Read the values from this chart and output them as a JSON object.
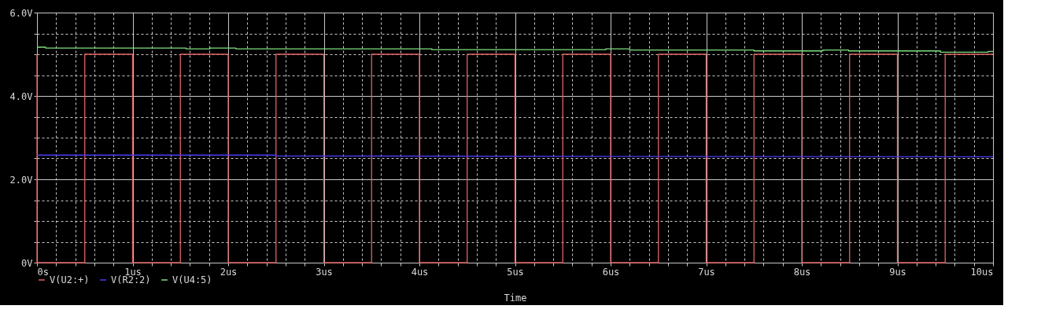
{
  "chart_data": {
    "type": "line",
    "xlabel": "Time",
    "legend": "bottom left",
    "grid": true,
    "line_style": "solid",
    "xlim": [
      0,
      10
    ],
    "ylim": [
      0,
      6
    ],
    "xticks": [
      {
        "value": 0,
        "label": "0s"
      },
      {
        "value": 0.2,
        "label": null
      },
      {
        "value": 0.4,
        "label": null
      },
      {
        "value": 0.6,
        "label": null
      },
      {
        "value": 0.8,
        "label": null
      },
      {
        "value": 1,
        "label": "1us"
      },
      {
        "value": 1.2,
        "label": null
      },
      {
        "value": 1.4,
        "label": null
      },
      {
        "value": 1.6,
        "label": null
      },
      {
        "value": 1.8,
        "label": null
      },
      {
        "value": 2,
        "label": "2us"
      },
      {
        "value": 2.2,
        "label": null
      },
      {
        "value": 2.4,
        "label": null
      },
      {
        "value": 2.6,
        "label": null
      },
      {
        "value": 2.8,
        "label": null
      },
      {
        "value": 3,
        "label": "3us"
      },
      {
        "value": 3.2,
        "label": null
      },
      {
        "value": 3.4,
        "label": null
      },
      {
        "value": 3.6,
        "label": null
      },
      {
        "value": 3.8,
        "label": null
      },
      {
        "value": 4,
        "label": "4us"
      },
      {
        "value": 4.2,
        "label": null
      },
      {
        "value": 4.4,
        "label": null
      },
      {
        "value": 4.6,
        "label": null
      },
      {
        "value": 4.8,
        "label": null
      },
      {
        "value": 5,
        "label": "5us"
      },
      {
        "value": 5.2,
        "label": null
      },
      {
        "value": 5.4,
        "label": null
      },
      {
        "value": 5.6,
        "label": null
      },
      {
        "value": 5.8,
        "label": null
      },
      {
        "value": 6,
        "label": "6us"
      },
      {
        "value": 6.2,
        "label": null
      },
      {
        "value": 6.4,
        "label": null
      },
      {
        "value": 6.6,
        "label": null
      },
      {
        "value": 6.8,
        "label": null
      },
      {
        "value": 7,
        "label": "7us"
      },
      {
        "value": 7.2,
        "label": null
      },
      {
        "value": 7.4,
        "label": null
      },
      {
        "value": 7.6,
        "label": null
      },
      {
        "value": 7.8,
        "label": null
      },
      {
        "value": 8,
        "label": "8us"
      },
      {
        "value": 8.2,
        "label": null
      },
      {
        "value": 8.4,
        "label": null
      },
      {
        "value": 8.6,
        "label": null
      },
      {
        "value": 8.8,
        "label": null
      },
      {
        "value": 9,
        "label": "9us"
      },
      {
        "value": 9.2,
        "label": null
      },
      {
        "value": 9.4,
        "label": null
      },
      {
        "value": 9.6,
        "label": null
      },
      {
        "value": 9.8,
        "label": null
      },
      {
        "value": 10,
        "label": "10us"
      }
    ],
    "yticks": [
      {
        "value": 0,
        "label": "0V"
      },
      {
        "value": 0.5,
        "label": null
      },
      {
        "value": 1,
        "label": null
      },
      {
        "value": 1.5,
        "label": null
      },
      {
        "value": 2,
        "label": "2.0V"
      },
      {
        "value": 2.5,
        "label": null
      },
      {
        "value": 3,
        "label": null
      },
      {
        "value": 3.5,
        "label": null
      },
      {
        "value": 4,
        "label": "4.0V"
      },
      {
        "value": 4.5,
        "label": null
      },
      {
        "value": 5,
        "label": null
      },
      {
        "value": 5.5,
        "label": null
      },
      {
        "value": 6,
        "label": "6.0V"
      }
    ],
    "series": [
      {
        "name": "V(U2:+)",
        "color": "#e06262",
        "x": [
          0,
          0,
          0.5,
          0.5,
          1,
          1,
          1.5,
          1.5,
          2,
          2,
          2.5,
          2.5,
          3,
          3,
          3.5,
          3.5,
          4,
          4,
          4.5,
          4.5,
          5,
          5,
          5.5,
          5.5,
          6,
          6,
          6.5,
          6.5,
          7,
          7,
          7.5,
          7.5,
          8,
          8,
          8.5,
          8.5,
          9,
          9,
          9.5,
          9.5,
          10
        ],
        "values": [
          5,
          0,
          0,
          5,
          5,
          0,
          0,
          5,
          5,
          0,
          0,
          5,
          5,
          0,
          0,
          5,
          5,
          0,
          0,
          5,
          5,
          0,
          0,
          5,
          5,
          0,
          0,
          5,
          5,
          0,
          0,
          5,
          5,
          0,
          0,
          5,
          5,
          0,
          0,
          5,
          5
        ]
      },
      {
        "name": "V(R2:2)",
        "color": "#4a3cf0",
        "x": [
          0,
          2.5,
          2.5,
          10
        ],
        "values": [
          2.58,
          2.58,
          2.56,
          2.54
        ]
      },
      {
        "name": "V(U4:5)",
        "color": "#7fe07f",
        "x": [
          0,
          0.09,
          0.09,
          1.56,
          1.56,
          1.81,
          1.81,
          2.08,
          2.08,
          4.13,
          4.13,
          5.95,
          5.95,
          6.2,
          6.2,
          7.5,
          7.5,
          8.22,
          8.22,
          8.49,
          8.49,
          9.45,
          9.45,
          9.95,
          9.95,
          10
        ],
        "values": [
          5.17,
          5.17,
          5.15,
          5.15,
          5.13,
          5.13,
          5.15,
          5.15,
          5.13,
          5.13,
          5.11,
          5.11,
          5.13,
          5.13,
          5.1,
          5.1,
          5.08,
          5.08,
          5.1,
          5.1,
          5.08,
          5.08,
          5.05,
          5.05,
          5.07,
          5.07
        ]
      }
    ]
  }
}
